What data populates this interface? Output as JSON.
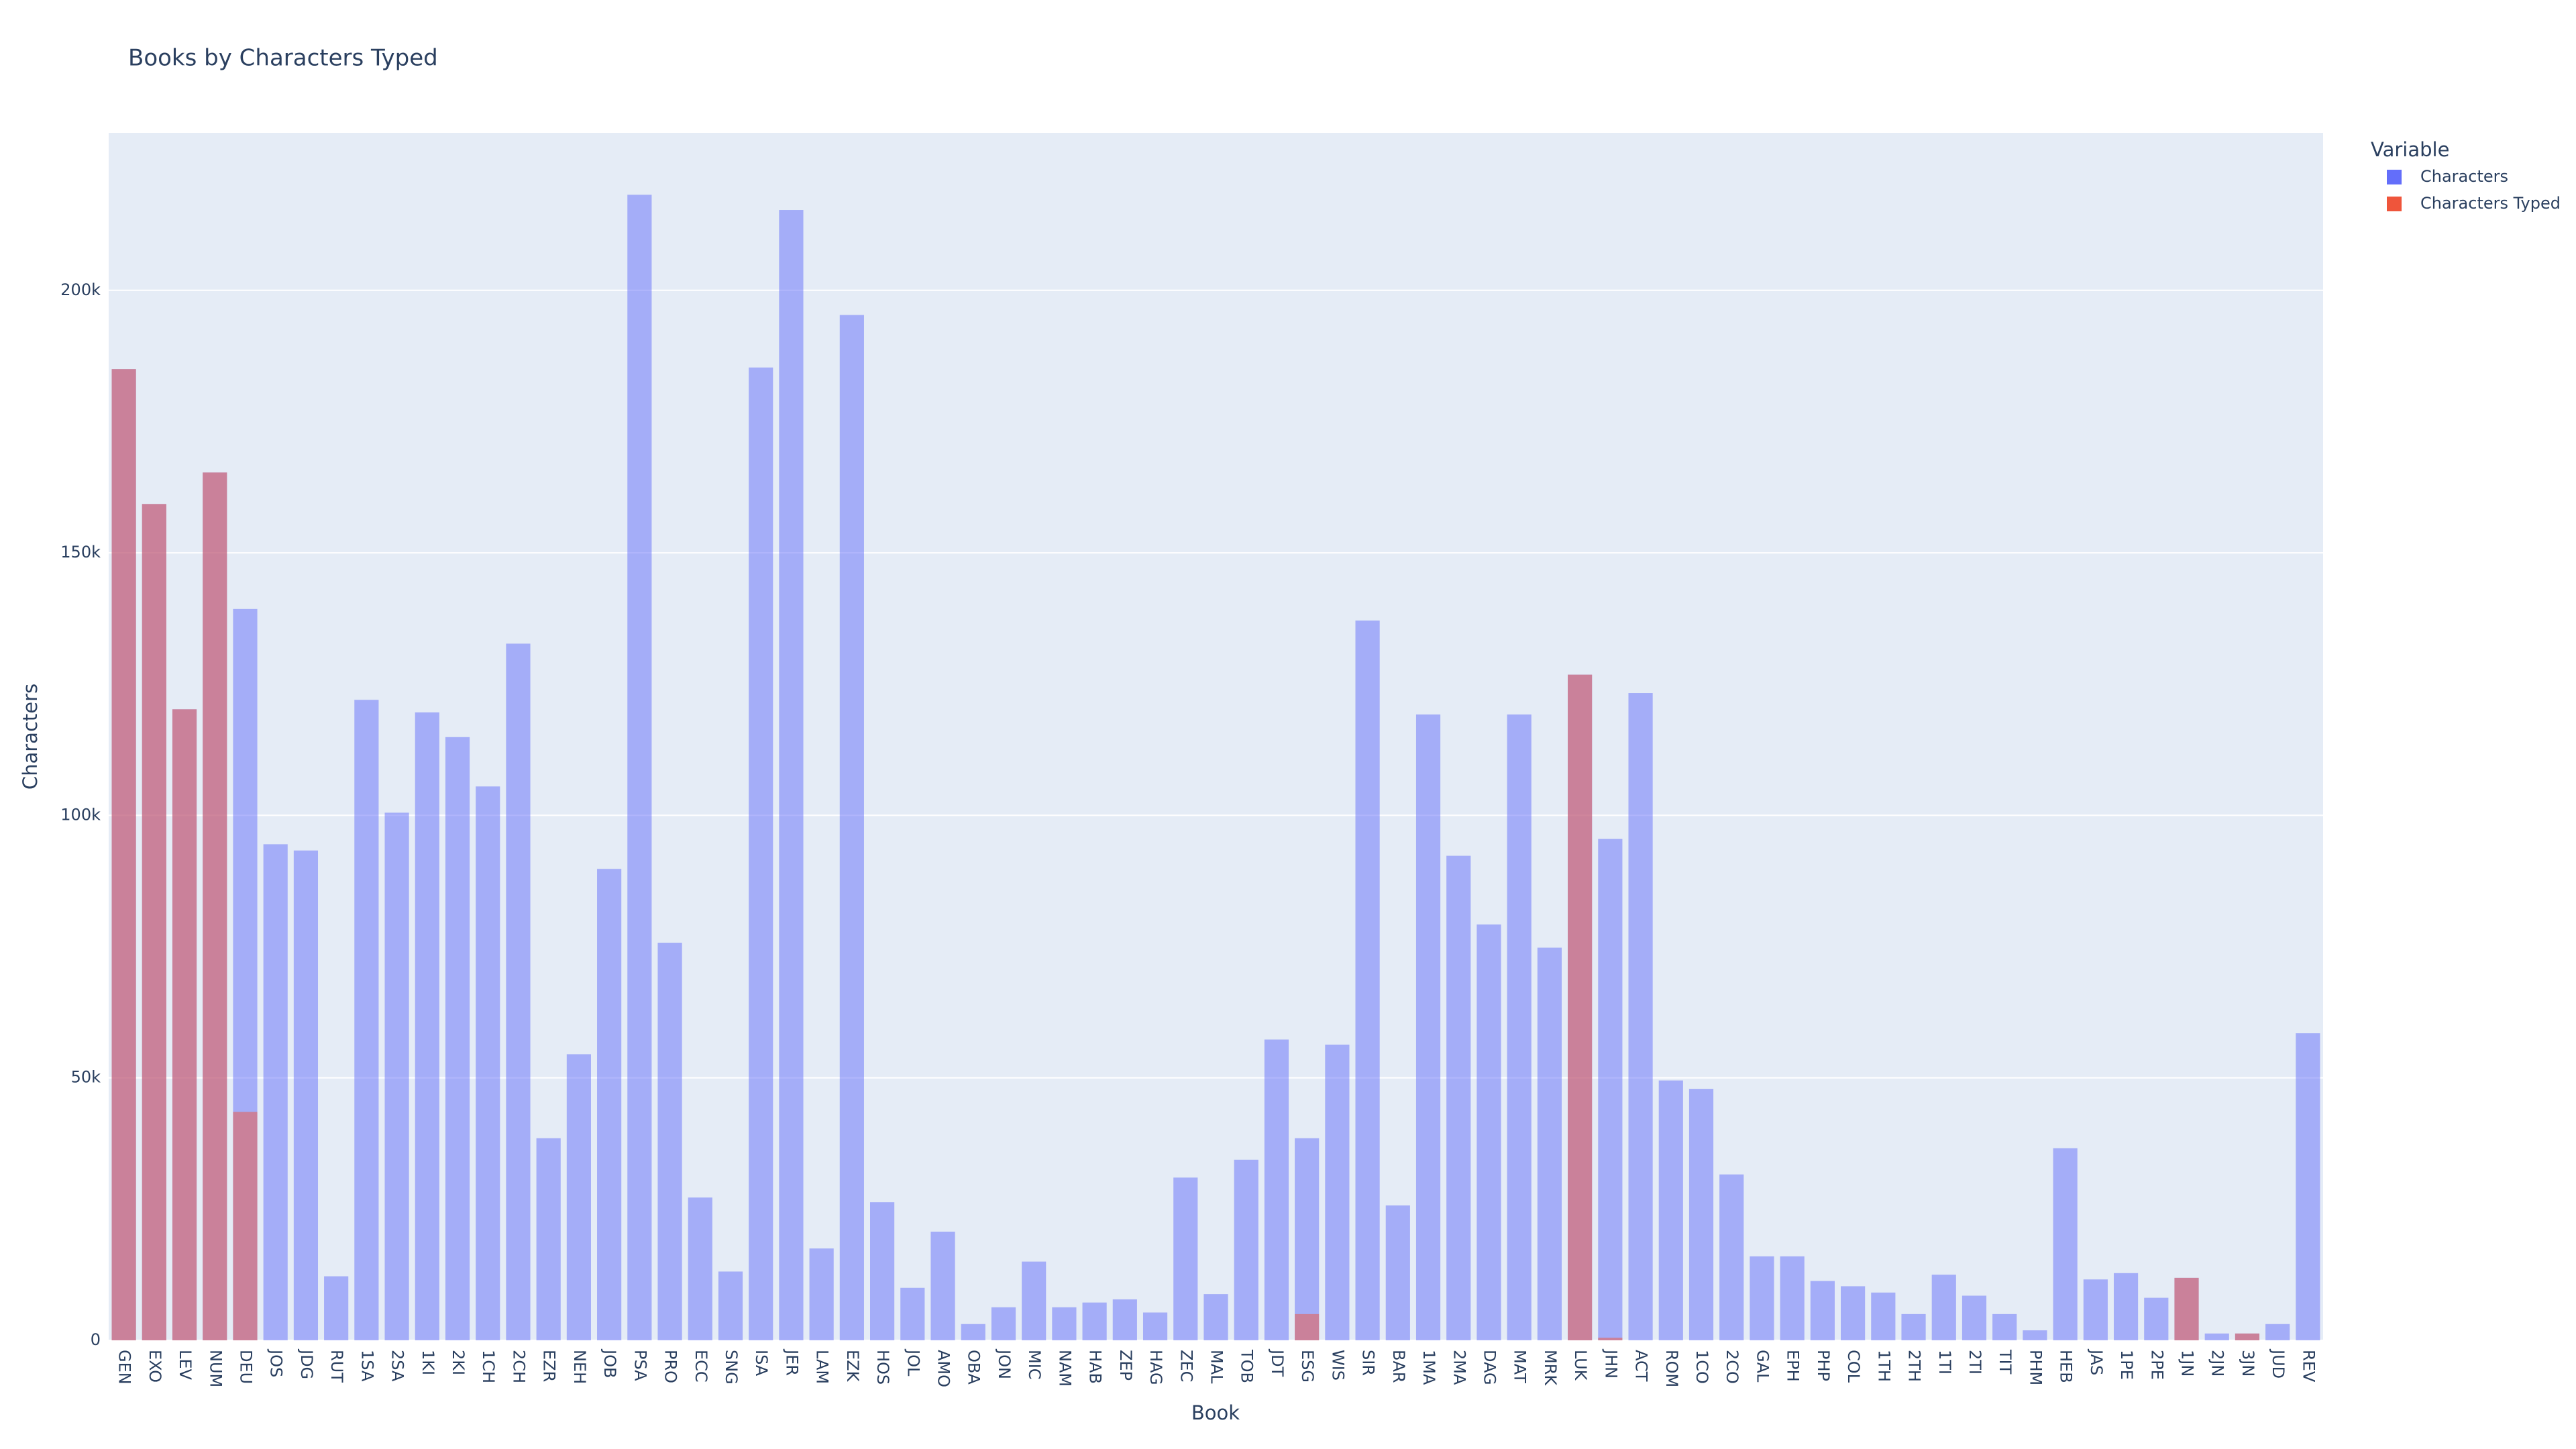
{
  "chart_data": {
    "type": "bar",
    "barmode": "overlay",
    "opacity": 0.5,
    "title": "Books by Characters Typed",
    "xlabel": "Book",
    "ylabel": "Characters",
    "legend_title": "Variable",
    "categories": [
      "GEN",
      "EXO",
      "LEV",
      "NUM",
      "DEU",
      "JOS",
      "JDG",
      "RUT",
      "1SA",
      "2SA",
      "1KI",
      "2KI",
      "1CH",
      "2CH",
      "EZR",
      "NEH",
      "JOB",
      "PSA",
      "PRO",
      "ECC",
      "SNG",
      "ISA",
      "JER",
      "LAM",
      "EZK",
      "HOS",
      "JOL",
      "AMO",
      "OBA",
      "JON",
      "MIC",
      "NAM",
      "HAB",
      "ZEP",
      "HAG",
      "ZEC",
      "MAL",
      "TOB",
      "JDT",
      "ESG",
      "WIS",
      "SIR",
      "BAR",
      "1MA",
      "2MA",
      "DAG",
      "MAT",
      "MRK",
      "LUK",
      "JHN",
      "ACT",
      "ROM",
      "1CO",
      "2CO",
      "GAL",
      "EPH",
      "PHP",
      "COL",
      "1TH",
      "2TH",
      "1TI",
      "2TI",
      "TIT",
      "PHM",
      "HEB",
      "JAS",
      "1PE",
      "2PE",
      "1JN",
      "2JN",
      "3JN",
      "JUD",
      "REV"
    ],
    "series": [
      {
        "name": "Characters",
        "color": "#636efa",
        "values": [
          185000,
          159300,
          120200,
          165300,
          139300,
          94500,
          93300,
          12200,
          122000,
          100500,
          119600,
          114900,
          105500,
          132700,
          38500,
          54500,
          89800,
          218200,
          75700,
          27200,
          13100,
          185300,
          215300,
          17500,
          195300,
          26300,
          10000,
          20700,
          3100,
          6300,
          15000,
          6300,
          7200,
          7800,
          5300,
          31000,
          8800,
          34400,
          57300,
          38500,
          56300,
          137100,
          25700,
          119200,
          92300,
          79200,
          119200,
          74800,
          126800,
          95500,
          123300,
          49500,
          47900,
          31600,
          16000,
          16000,
          11300,
          10300,
          9100,
          5000,
          12500,
          8500,
          5000,
          1900,
          36600,
          11600,
          12800,
          8100,
          11900,
          1300,
          1300,
          3100,
          58500
        ]
      },
      {
        "name": "Characters Typed",
        "color": "#ef553b",
        "values": [
          185000,
          159300,
          120200,
          165300,
          43500,
          0,
          0,
          0,
          0,
          0,
          0,
          0,
          0,
          0,
          0,
          0,
          0,
          0,
          0,
          0,
          0,
          0,
          0,
          0,
          0,
          0,
          0,
          0,
          0,
          0,
          0,
          0,
          0,
          0,
          0,
          0,
          0,
          0,
          0,
          5000,
          0,
          0,
          0,
          0,
          0,
          0,
          0,
          0,
          126800,
          500,
          0,
          0,
          0,
          0,
          0,
          0,
          0,
          0,
          0,
          0,
          0,
          0,
          0,
          0,
          0,
          0,
          0,
          0,
          11900,
          0,
          1300,
          0,
          0
        ]
      }
    ],
    "ylim": [
      0,
      230000
    ],
    "yticks": [
      0,
      {
        "value": 50000,
        "label": "50k"
      },
      {
        "value": 100000,
        "label": "100k"
      },
      {
        "value": 150000,
        "label": "150k"
      },
      {
        "value": 200000,
        "label": "200k"
      }
    ],
    "grid": true,
    "legend": "right"
  }
}
